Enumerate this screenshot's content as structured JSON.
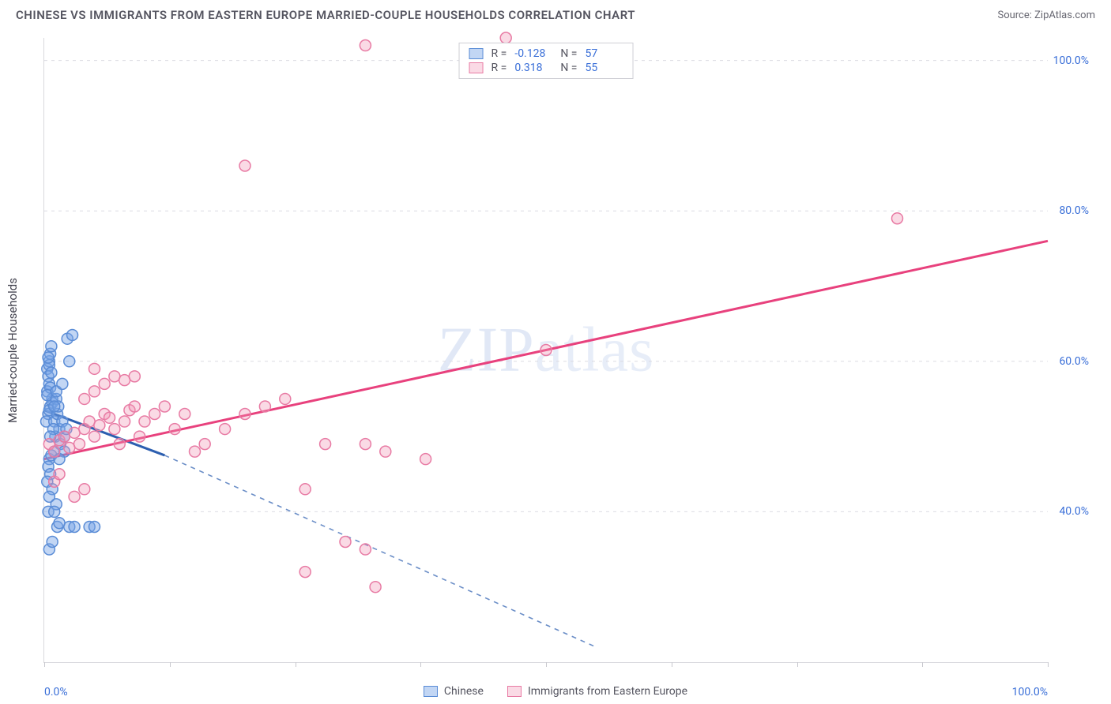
{
  "title": "CHINESE VS IMMIGRANTS FROM EASTERN EUROPE MARRIED-COUPLE HOUSEHOLDS CORRELATION CHART",
  "source": "Source: ZipAtlas.com",
  "yaxis_label": "Married-couple Households",
  "watermark": "ZIPatlas",
  "chart": {
    "type": "scatter",
    "xlim": [
      0,
      100
    ],
    "ylim": [
      20,
      103
    ],
    "y_ticks": [
      40,
      60,
      80,
      100
    ],
    "y_tick_labels": [
      "40.0%",
      "60.0%",
      "80.0%",
      "100.0%"
    ],
    "x_ticks": [
      0,
      12.5,
      25,
      37.5,
      50,
      62.5,
      75,
      87.5,
      100
    ],
    "x_tick_labels": {
      "0": "0.0%",
      "100": "100.0%"
    },
    "background_color": "#ffffff",
    "grid_color": "#dcdce2",
    "axis_color": "#d8d8dd",
    "tick_label_color": "#3a6fd8",
    "marker_radius": 7,
    "marker_stroke_width": 1.5,
    "line_width_solid": 3,
    "line_width_dash": 1.6,
    "series": [
      {
        "name": "Chinese",
        "color_fill": "rgba(120,165,230,0.45)",
        "color_stroke": "#5a8cd6",
        "line_color": "#2d5fb0",
        "R": "-0.128",
        "N": "57",
        "trend": {
          "x1": 0,
          "y1": 53.5,
          "x2": 12,
          "y2": 47.5,
          "dash_to_x": 55,
          "dash_to_y": 22
        },
        "points": [
          [
            0.3,
            59
          ],
          [
            0.5,
            60
          ],
          [
            0.6,
            61
          ],
          [
            0.4,
            58
          ],
          [
            0.7,
            62
          ],
          [
            0.5,
            57
          ],
          [
            0.3,
            56
          ],
          [
            0.8,
            55
          ],
          [
            0.6,
            54
          ],
          [
            0.4,
            53
          ],
          [
            0.2,
            52
          ],
          [
            0.5,
            59.5
          ],
          [
            0.7,
            58.5
          ],
          [
            0.4,
            60.5
          ],
          [
            0.6,
            56.5
          ],
          [
            0.8,
            54.5
          ],
          [
            0.3,
            55.5
          ],
          [
            0.5,
            53.5
          ],
          [
            1.0,
            52
          ],
          [
            1.2,
            55
          ],
          [
            1.5,
            51
          ],
          [
            1.3,
            53
          ],
          [
            1.1,
            50
          ],
          [
            1.4,
            54
          ],
          [
            1.6,
            49
          ],
          [
            1.8,
            52
          ],
          [
            2.0,
            50
          ],
          [
            2.2,
            51
          ],
          [
            2.0,
            48
          ],
          [
            2.5,
            60
          ],
          [
            2.3,
            63
          ],
          [
            2.8,
            63.5
          ],
          [
            0.5,
            47
          ],
          [
            0.7,
            47.5
          ],
          [
            0.4,
            46
          ],
          [
            0.6,
            45
          ],
          [
            1.0,
            48
          ],
          [
            1.5,
            47
          ],
          [
            0.3,
            44
          ],
          [
            0.8,
            43
          ],
          [
            0.5,
            42
          ],
          [
            1.2,
            41
          ],
          [
            0.4,
            40
          ],
          [
            1.0,
            40
          ],
          [
            1.3,
            38
          ],
          [
            1.5,
            38.5
          ],
          [
            2.5,
            38
          ],
          [
            3.0,
            38
          ],
          [
            0.5,
            35
          ],
          [
            0.8,
            36
          ],
          [
            4.5,
            38
          ],
          [
            5.0,
            38
          ],
          [
            1.0,
            54
          ],
          [
            1.2,
            56
          ],
          [
            1.8,
            57
          ],
          [
            0.9,
            51
          ],
          [
            0.6,
            50
          ]
        ]
      },
      {
        "name": "Immigrants from Eastern Europe",
        "color_fill": "rgba(240,150,180,0.35)",
        "color_stroke": "#e87ba4",
        "line_color": "#e8417d",
        "R": "0.318",
        "N": "55",
        "trend": {
          "x1": 0,
          "y1": 47,
          "x2": 100,
          "y2": 76
        },
        "points": [
          [
            0.5,
            49
          ],
          [
            1.0,
            48
          ],
          [
            1.5,
            49.5
          ],
          [
            2.0,
            50
          ],
          [
            2.5,
            48.5
          ],
          [
            3.0,
            50.5
          ],
          [
            3.5,
            49
          ],
          [
            4.0,
            51
          ],
          [
            4.5,
            52
          ],
          [
            5.0,
            50
          ],
          [
            5.5,
            51.5
          ],
          [
            6.0,
            53
          ],
          [
            6.5,
            52.5
          ],
          [
            7.0,
            51
          ],
          [
            7.5,
            49
          ],
          [
            8.0,
            52
          ],
          [
            8.5,
            53.5
          ],
          [
            9.0,
            54
          ],
          [
            9.5,
            50
          ],
          [
            10.0,
            52
          ],
          [
            11.0,
            53
          ],
          [
            12.0,
            54
          ],
          [
            13.0,
            51
          ],
          [
            14.0,
            53
          ],
          [
            15.0,
            48
          ],
          [
            4.0,
            55
          ],
          [
            5.0,
            56
          ],
          [
            6.0,
            57
          ],
          [
            7.0,
            58
          ],
          [
            8.0,
            57.5
          ],
          [
            9.0,
            58
          ],
          [
            5.0,
            59
          ],
          [
            3.0,
            42
          ],
          [
            4.0,
            43
          ],
          [
            1.0,
            44
          ],
          [
            1.5,
            45
          ],
          [
            16.0,
            49
          ],
          [
            18.0,
            51
          ],
          [
            20.0,
            53
          ],
          [
            22.0,
            54
          ],
          [
            24.0,
            55
          ],
          [
            28.0,
            49
          ],
          [
            32.0,
            49
          ],
          [
            34.0,
            48
          ],
          [
            38.0,
            47
          ],
          [
            20.0,
            86
          ],
          [
            32.0,
            102
          ],
          [
            46.0,
            103
          ],
          [
            50.0,
            61.5
          ],
          [
            26.0,
            43
          ],
          [
            30.0,
            36
          ],
          [
            32.0,
            35
          ],
          [
            33.0,
            30
          ],
          [
            26.0,
            32
          ],
          [
            85.0,
            79
          ]
        ]
      }
    ]
  },
  "stats_box": {
    "r_label": "R =",
    "n_label": "N ="
  },
  "legend": {
    "items": [
      "Chinese",
      "Immigrants from Eastern Europe"
    ]
  }
}
